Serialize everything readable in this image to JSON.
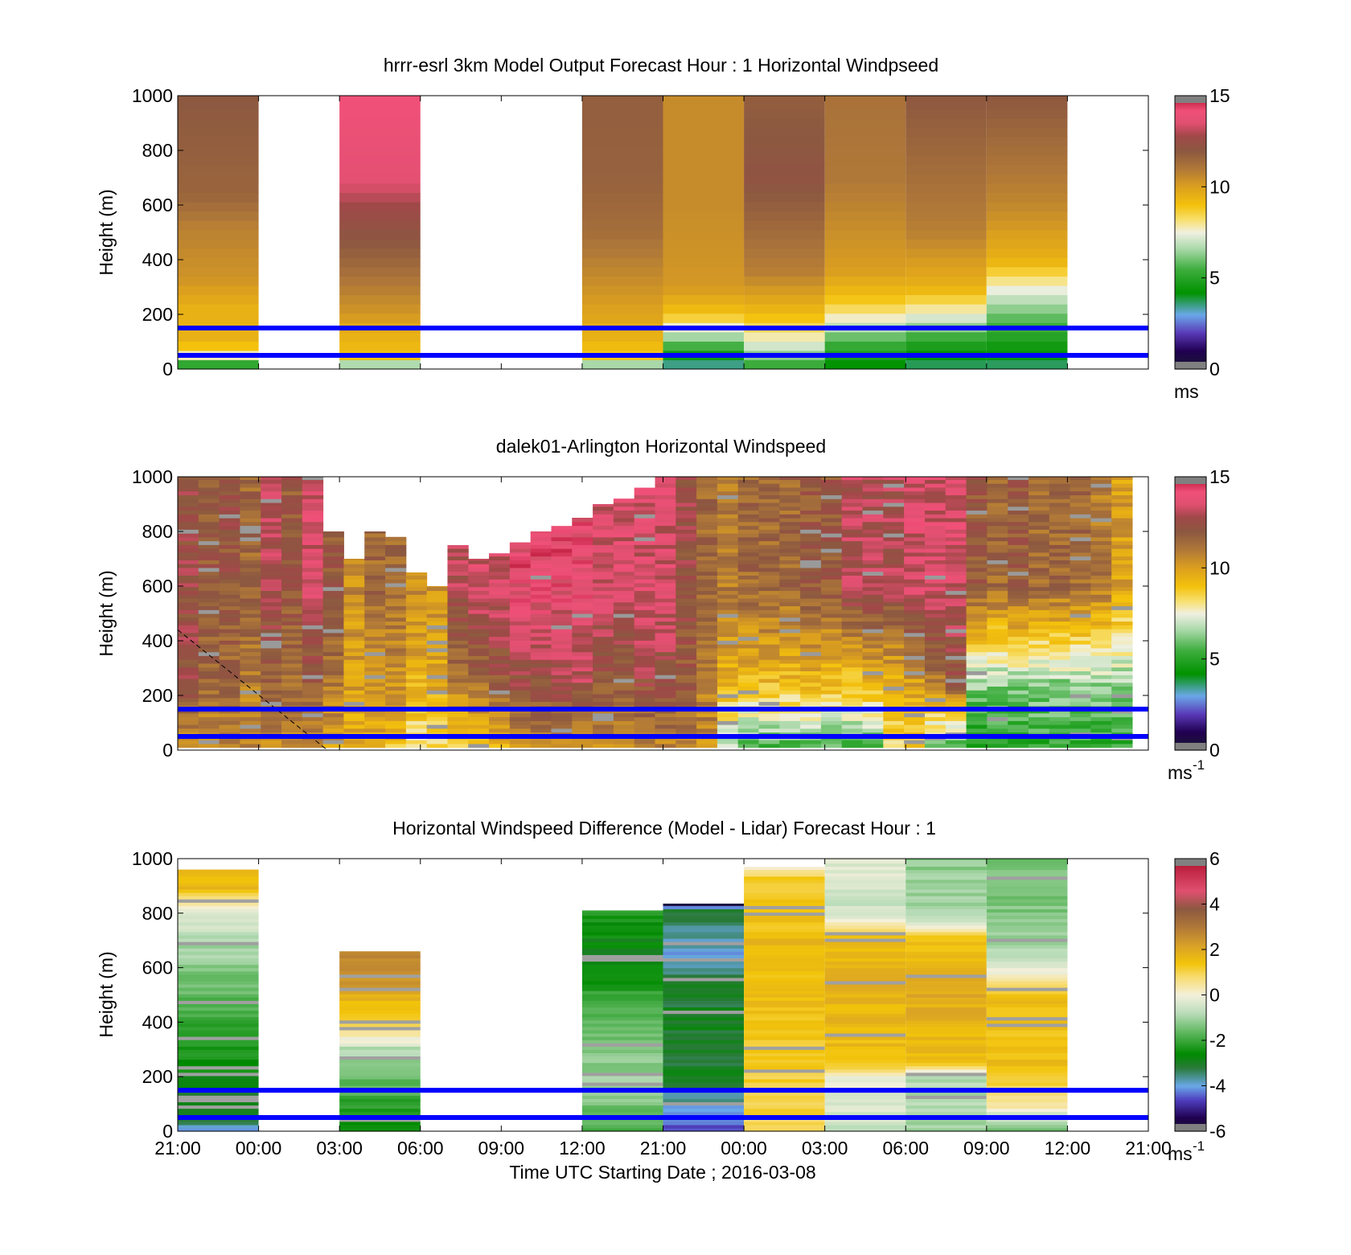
{
  "chart_data": [
    {
      "type": "heatmap",
      "title": "hrrr-esrl 3km Model Output   Forecast Hour : 1 Horizontal Windpseed",
      "ylabel": "Height (m)",
      "ylim": [
        0,
        1000
      ],
      "yticks": [
        "0",
        "200",
        "400",
        "600",
        "800",
        "1000"
      ],
      "colorbar": {
        "ticks": [
          "0",
          "5",
          "10",
          "15"
        ],
        "range": [
          0,
          15
        ],
        "unit": "ms",
        "scale": "speed"
      },
      "columns": [
        {
          "slot": 0,
          "top": 1000,
          "profile": [
            [
              0,
              4.2
            ],
            [
              30,
              6
            ],
            [
              60,
              8.5
            ],
            [
              110,
              9.5
            ],
            [
              220,
              9.5
            ],
            [
              330,
              10.3
            ],
            [
              520,
              10.8
            ],
            [
              640,
              11.6
            ],
            [
              1000,
              12.0
            ]
          ]
        },
        {
          "slot": 2,
          "top": 1000,
          "profile": [
            [
              0,
              5
            ],
            [
              40,
              9
            ],
            [
              120,
              9.5
            ],
            [
              200,
              10.2
            ],
            [
              400,
              11.6
            ],
            [
              600,
              12.8
            ],
            [
              700,
              13.7
            ],
            [
              1000,
              14.2
            ]
          ]
        },
        {
          "slot": 5,
          "top": 1000,
          "profile": [
            [
              0,
              5
            ],
            [
              40,
              8.8
            ],
            [
              120,
              9.5
            ],
            [
              330,
              10.5
            ],
            [
              500,
              11.3
            ],
            [
              700,
              11.7
            ],
            [
              1000,
              11.8
            ]
          ]
        },
        {
          "slot": 6,
          "top": 1000,
          "profile": [
            [
              0,
              3
            ],
            [
              100,
              6
            ],
            [
              200,
              9
            ],
            [
              300,
              10.2
            ],
            [
              600,
              10.5
            ],
            [
              1000,
              10.5
            ]
          ]
        },
        {
          "slot": 7,
          "top": 1000,
          "profile": [
            [
              0,
              5
            ],
            [
              100,
              7.5
            ],
            [
              200,
              9.2
            ],
            [
              350,
              10.8
            ],
            [
              700,
              12.2
            ],
            [
              1000,
              11.8
            ]
          ]
        },
        {
          "slot": 8,
          "top": 1000,
          "profile": [
            [
              0,
              4
            ],
            [
              100,
              5.5
            ],
            [
              200,
              8
            ],
            [
              260,
              9
            ],
            [
              350,
              10
            ],
            [
              700,
              11
            ],
            [
              1000,
              11.2
            ]
          ]
        },
        {
          "slot": 9,
          "top": 1000,
          "profile": [
            [
              0,
              3.5
            ],
            [
              100,
              5
            ],
            [
              200,
              7.5
            ],
            [
              300,
              9.5
            ],
            [
              500,
              10.8
            ],
            [
              1000,
              12
            ]
          ]
        },
        {
          "slot": 10,
          "top": 1000,
          "profile": [
            [
              0,
              3.5
            ],
            [
              120,
              5
            ],
            [
              200,
              6
            ],
            [
              300,
              7.6
            ],
            [
              400,
              9.5
            ],
            [
              600,
              10.6
            ],
            [
              1000,
              12
            ]
          ]
        }
      ]
    },
    {
      "type": "heatmap",
      "title": "dalek01-Arlington  Horizontal Windspeed",
      "ylabel": "Height (m)",
      "ylim": [
        0,
        1000
      ],
      "yticks": [
        "0",
        "200",
        "400",
        "600",
        "800",
        "1000"
      ],
      "colorbar": {
        "ticks": [
          "0",
          "5",
          "10",
          "15"
        ],
        "range": [
          0,
          15
        ],
        "unit": "ms",
        "unit_exponent": "-1",
        "scale": "speed"
      },
      "dashed_line": [
        [
          0,
          440
        ],
        [
          1.85,
          0
        ]
      ],
      "columns": [
        {
          "top": 1000,
          "low": 10,
          "mid": 12.5,
          "high": 12.5
        },
        {
          "top": 1000,
          "low": 10.5,
          "mid": 11.5,
          "high": 12
        },
        {
          "top": 1000,
          "low": 10.5,
          "mid": 11.5,
          "high": 12.2
        },
        {
          "top": 1000,
          "low": 10.5,
          "mid": 11,
          "high": 11.5
        },
        {
          "top": 1000,
          "low": 10.5,
          "mid": 11.5,
          "high": 13
        },
        {
          "top": 1000,
          "low": 10.5,
          "mid": 11.5,
          "high": 12
        },
        {
          "top": 1000,
          "low": 10.5,
          "mid": 11.8,
          "high": 13.5
        },
        {
          "top": 800,
          "low": 10,
          "mid": 11,
          "high": 12
        },
        {
          "top": 700,
          "low": 9.5,
          "mid": 10,
          "high": 10.5
        },
        {
          "top": 800,
          "low": 9.5,
          "mid": 10.5,
          "high": 11.5
        },
        {
          "top": 780,
          "low": 9,
          "mid": 10.3,
          "high": 11.5
        },
        {
          "top": 650,
          "low": 8,
          "mid": 9.5,
          "high": 10.5
        },
        {
          "top": 600,
          "low": 8,
          "mid": 9.8,
          "high": 10.5
        },
        {
          "top": 750,
          "low": 8.5,
          "mid": 11,
          "high": 13
        },
        {
          "top": 700,
          "low": 9,
          "mid": 11.5,
          "high": 13.5
        },
        {
          "top": 720,
          "low": 9.5,
          "mid": 12,
          "high": 13.5
        },
        {
          "top": 760,
          "low": 10,
          "mid": 12.5,
          "high": 14
        },
        {
          "top": 800,
          "low": 10.5,
          "mid": 12.5,
          "high": 14
        },
        {
          "top": 820,
          "low": 10.5,
          "mid": 12.8,
          "high": 14
        },
        {
          "top": 850,
          "low": 10.5,
          "mid": 12.8,
          "high": 14
        },
        {
          "top": 900,
          "low": 10.5,
          "mid": 12,
          "high": 13.5
        },
        {
          "top": 920,
          "low": 10.5,
          "mid": 12,
          "high": 13.5
        },
        {
          "top": 960,
          "low": 10.5,
          "mid": 12.5,
          "high": 13.5
        },
        {
          "top": 1000,
          "low": 10.5,
          "mid": 12.5,
          "high": 13.5
        },
        {
          "top": 1000,
          "low": 10.5,
          "mid": 12,
          "high": 12.5
        },
        {
          "top": 1000,
          "low": 10.5,
          "mid": 11,
          "high": 11.5
        },
        {
          "top": 1000,
          "low": 6.5,
          "mid": 9.5,
          "high": 11
        },
        {
          "top": 1000,
          "low": 5.5,
          "mid": 9.3,
          "high": 11.5
        },
        {
          "top": 1000,
          "low": 5.5,
          "mid": 9.3,
          "high": 11.5
        },
        {
          "top": 1000,
          "low": 5.5,
          "mid": 9.3,
          "high": 11.5
        },
        {
          "top": 1000,
          "low": 5.5,
          "mid": 9.3,
          "high": 12
        },
        {
          "top": 1000,
          "low": 5.5,
          "mid": 9.3,
          "high": 12
        },
        {
          "top": 1000,
          "low": 5.5,
          "mid": 9,
          "high": 13
        },
        {
          "top": 1000,
          "low": 5.5,
          "mid": 9.5,
          "high": 13
        },
        {
          "top": 1000,
          "low": 8.5,
          "mid": 9.5,
          "high": 13
        },
        {
          "top": 1000,
          "low": 8.5,
          "mid": 10,
          "high": 13.5
        },
        {
          "top": 1000,
          "low": 6,
          "mid": 11,
          "high": 13.5
        },
        {
          "top": 1000,
          "low": 5,
          "mid": 12,
          "high": 13.5
        },
        {
          "top": 1000,
          "low": 4.5,
          "mid": 6.5,
          "high": 12
        },
        {
          "top": 1000,
          "low": 4.5,
          "mid": 6.5,
          "high": 11.5
        },
        {
          "top": 1000,
          "low": 4.5,
          "mid": 6.5,
          "high": 12
        },
        {
          "top": 1000,
          "low": 5,
          "mid": 6.5,
          "high": 11.5
        },
        {
          "top": 1000,
          "low": 5,
          "mid": 6.5,
          "high": 11.5
        },
        {
          "top": 1000,
          "low": 5,
          "mid": 6.5,
          "high": 11.5
        },
        {
          "top": 1000,
          "low": 5,
          "mid": 6.5,
          "high": 11
        },
        {
          "top": 1000,
          "low": 5,
          "mid": 6.5,
          "high": 10
        }
      ]
    },
    {
      "type": "heatmap",
      "title": "Horizontal Windspeed Difference (Model - Lidar) Forecast Hour : 1",
      "ylabel": "Height (m)",
      "xlabel": "Time UTC  Starting Date ; 2016-03-08",
      "ylim": [
        0,
        1000
      ],
      "yticks": [
        "0",
        "200",
        "400",
        "600",
        "800",
        "1000"
      ],
      "xticks": [
        "21:00",
        "00:00",
        "03:00",
        "06:00",
        "09:00",
        "12:00",
        "21:00",
        "00:00",
        "03:00",
        "06:00",
        "09:00",
        "12:00",
        "21:00"
      ],
      "colorbar": {
        "ticks": [
          "-6",
          "-4",
          "-2",
          "0",
          "2",
          "4",
          "6"
        ],
        "range": [
          -6,
          6
        ],
        "unit": "ms",
        "unit_exponent": "-1",
        "scale": "diff"
      },
      "columns": [
        {
          "slot": 0,
          "top": 960,
          "profile": [
            [
              10,
              -3.8
            ],
            [
              80,
              -3
            ],
            [
              200,
              -2.6
            ],
            [
              380,
              -2
            ],
            [
              550,
              -1.5
            ],
            [
              700,
              -0.8
            ],
            [
              800,
              -0.4
            ],
            [
              840,
              0.6
            ],
            [
              900,
              1.8
            ],
            [
              960,
              1.5
            ]
          ]
        },
        {
          "slot": 2,
          "top": 660,
          "profile": [
            [
              30,
              -2.6
            ],
            [
              150,
              -1.8
            ],
            [
              300,
              -0.8
            ],
            [
              360,
              0.5
            ],
            [
              470,
              1.5
            ],
            [
              560,
              2.5
            ],
            [
              660,
              2.8
            ]
          ]
        },
        {
          "slot": 5,
          "top": 810,
          "profile": [
            [
              0,
              -2
            ],
            [
              150,
              -1
            ],
            [
              250,
              -1.2
            ],
            [
              450,
              -1.8
            ],
            [
              650,
              -2.8
            ],
            [
              810,
              -2.3
            ]
          ]
        },
        {
          "slot": 6,
          "top": 835,
          "profile": [
            [
              20,
              -4.5
            ],
            [
              100,
              -3.8
            ],
            [
              200,
              -3
            ],
            [
              400,
              -3
            ],
            [
              550,
              -3.1
            ],
            [
              650,
              -4
            ],
            [
              750,
              -3.5
            ],
            [
              810,
              -3
            ],
            [
              835,
              -6
            ]
          ]
        },
        {
          "slot": 7,
          "top": 970,
          "profile": [
            [
              90,
              1
            ],
            [
              300,
              1.3
            ],
            [
              500,
              1.6
            ],
            [
              700,
              1.6
            ],
            [
              850,
              1.3
            ],
            [
              930,
              1.3
            ],
            [
              970,
              0
            ]
          ]
        },
        {
          "slot": 8,
          "top": 1000,
          "profile": [
            [
              20,
              -0.5
            ],
            [
              200,
              0
            ],
            [
              250,
              1.5
            ],
            [
              500,
              1.8
            ],
            [
              700,
              1.6
            ],
            [
              800,
              -0.5
            ],
            [
              1000,
              -0.3
            ]
          ]
        },
        {
          "slot": 9,
          "top": 1000,
          "profile": [
            [
              20,
              -1
            ],
            [
              200,
              -0.8
            ],
            [
              250,
              1.5
            ],
            [
              500,
              2
            ],
            [
              700,
              1.5
            ],
            [
              800,
              -1
            ],
            [
              1000,
              -1.2
            ]
          ]
        },
        {
          "slot": 10,
          "top": 1000,
          "profile": [
            [
              20,
              -1.2
            ],
            [
              100,
              0.5
            ],
            [
              250,
              1.5
            ],
            [
              500,
              1.5
            ],
            [
              560,
              0.5
            ],
            [
              620,
              -0.6
            ],
            [
              800,
              -1.3
            ],
            [
              1000,
              -1.5
            ]
          ]
        }
      ]
    }
  ],
  "reference_lines": {
    "color": "#0000ff",
    "heights_m": [
      150,
      50
    ]
  },
  "palettes": {
    "speed": [
      [
        0.0,
        "#1a1a2e"
      ],
      [
        1.0,
        "#200050"
      ],
      [
        2.0,
        "#5a3ab8"
      ],
      [
        3.0,
        "#6aa8e8"
      ],
      [
        4.2,
        "#009200"
      ],
      [
        5.5,
        "#3fae3f"
      ],
      [
        6.6,
        "#a8d8a8"
      ],
      [
        7.5,
        "#f0f0e2"
      ],
      [
        8.2,
        "#f8e070"
      ],
      [
        9.0,
        "#f4c20c"
      ],
      [
        10.0,
        "#dca01e"
      ],
      [
        11.0,
        "#b07838"
      ],
      [
        12.0,
        "#8c5840"
      ],
      [
        12.8,
        "#a04848"
      ],
      [
        13.5,
        "#e05070"
      ],
      [
        14.2,
        "#f05078"
      ],
      [
        15.0,
        "#b0102e"
      ]
    ],
    "diff": [
      [
        -6.0,
        "#1a1a2e"
      ],
      [
        -5.4,
        "#200050"
      ],
      [
        -4.6,
        "#5040c0"
      ],
      [
        -4.0,
        "#6aa8e8"
      ],
      [
        -3.2,
        "#2a7a3a"
      ],
      [
        -2.6,
        "#008a00"
      ],
      [
        -1.8,
        "#4eb04e"
      ],
      [
        -0.8,
        "#b8dcb8"
      ],
      [
        0.0,
        "#f4f0dc"
      ],
      [
        0.8,
        "#f8dc70"
      ],
      [
        1.4,
        "#f2c40a"
      ],
      [
        2.2,
        "#d8a028"
      ],
      [
        3.0,
        "#b07838"
      ],
      [
        3.8,
        "#8c5840"
      ],
      [
        4.6,
        "#e05070"
      ],
      [
        6.0,
        "#b0102e"
      ]
    ]
  }
}
